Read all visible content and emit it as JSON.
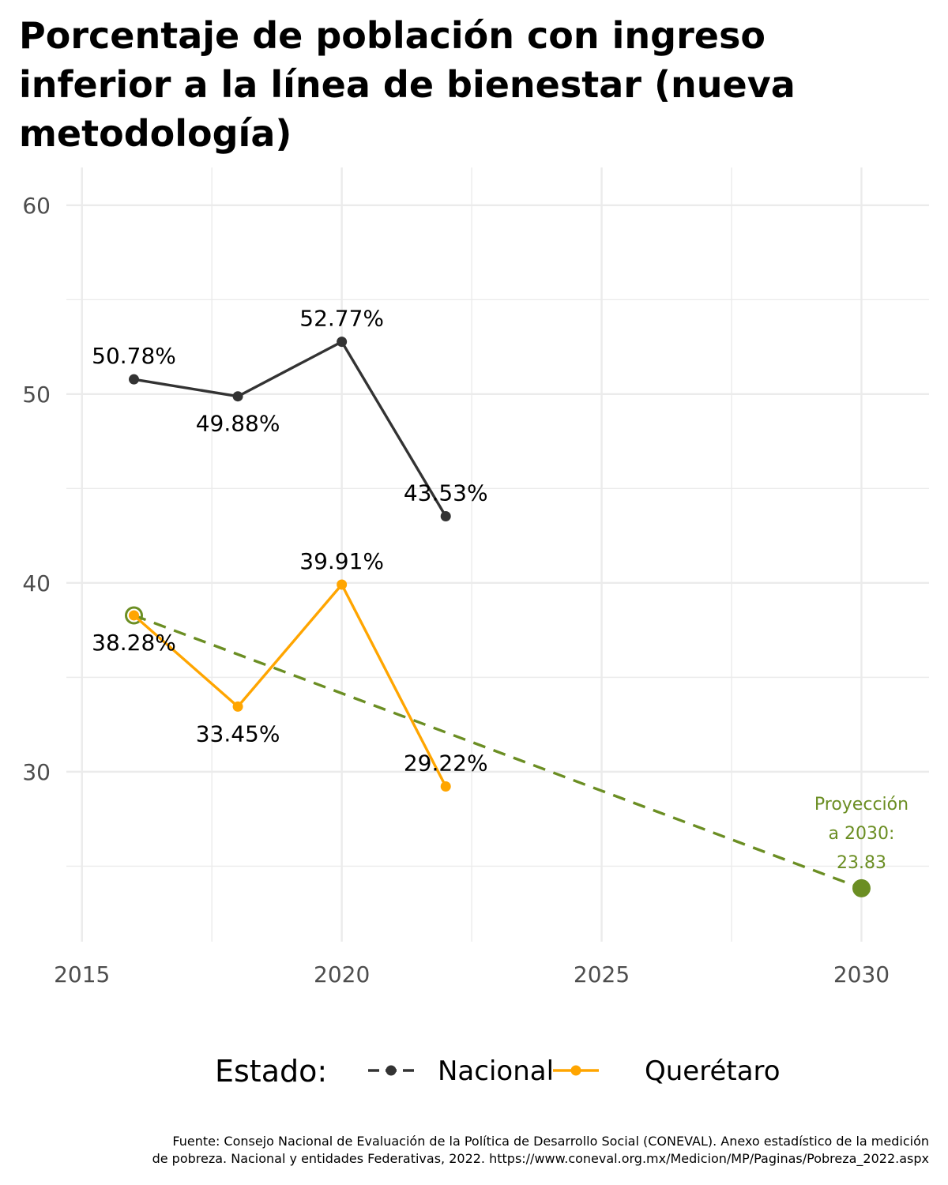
{
  "chart_data": {
    "type": "line",
    "title": "Porcentaje de población con ingreso inferior a la línea de bienestar (nueva metodología)",
    "xlabel": "",
    "ylabel": "",
    "xlim": [
      2014.7,
      2031.3
    ],
    "ylim": [
      21,
      62
    ],
    "x_ticks": [
      2015,
      2020,
      2025,
      2030
    ],
    "y_ticks": [
      30,
      40,
      50,
      60
    ],
    "grid": true,
    "legend": {
      "title": "Estado:",
      "position": "bottom",
      "entries": [
        "Nacional",
        "Querétaro"
      ]
    },
    "series": [
      {
        "name": "Nacional",
        "color": "#333333",
        "x": [
          2016,
          2018,
          2020,
          2022
        ],
        "values": [
          50.78,
          49.88,
          52.77,
          43.53
        ],
        "labels": [
          "50.78%",
          "49.88%",
          "52.77%",
          "43.53%"
        ],
        "label_side": [
          "above",
          "below",
          "above",
          "above"
        ]
      },
      {
        "name": "Querétaro",
        "color": "#FFA500",
        "x": [
          2016,
          2018,
          2020,
          2022
        ],
        "values": [
          38.28,
          33.45,
          39.91,
          29.22
        ],
        "labels": [
          "38.28%",
          "33.45%",
          "39.91%",
          "29.22%"
        ],
        "label_side": [
          "below",
          "below",
          "above",
          "above"
        ]
      }
    ],
    "projection": {
      "color": "#6B8E23",
      "x": [
        2016,
        2030
      ],
      "values": [
        38.28,
        23.83
      ],
      "annotation": [
        "Proyección",
        "a 2030:",
        "23.83"
      ]
    }
  },
  "source": {
    "line1": "Fuente: Consejo Nacional de Evaluación de la Política de Desarrollo Social (CONEVAL). Anexo estadístico de la medición",
    "line2": "de pobreza. Nacional y entidades Federativas, 2022. https://www.coneval.org.mx/Medicion/MP/Paginas/Pobreza_2022.aspx"
  }
}
